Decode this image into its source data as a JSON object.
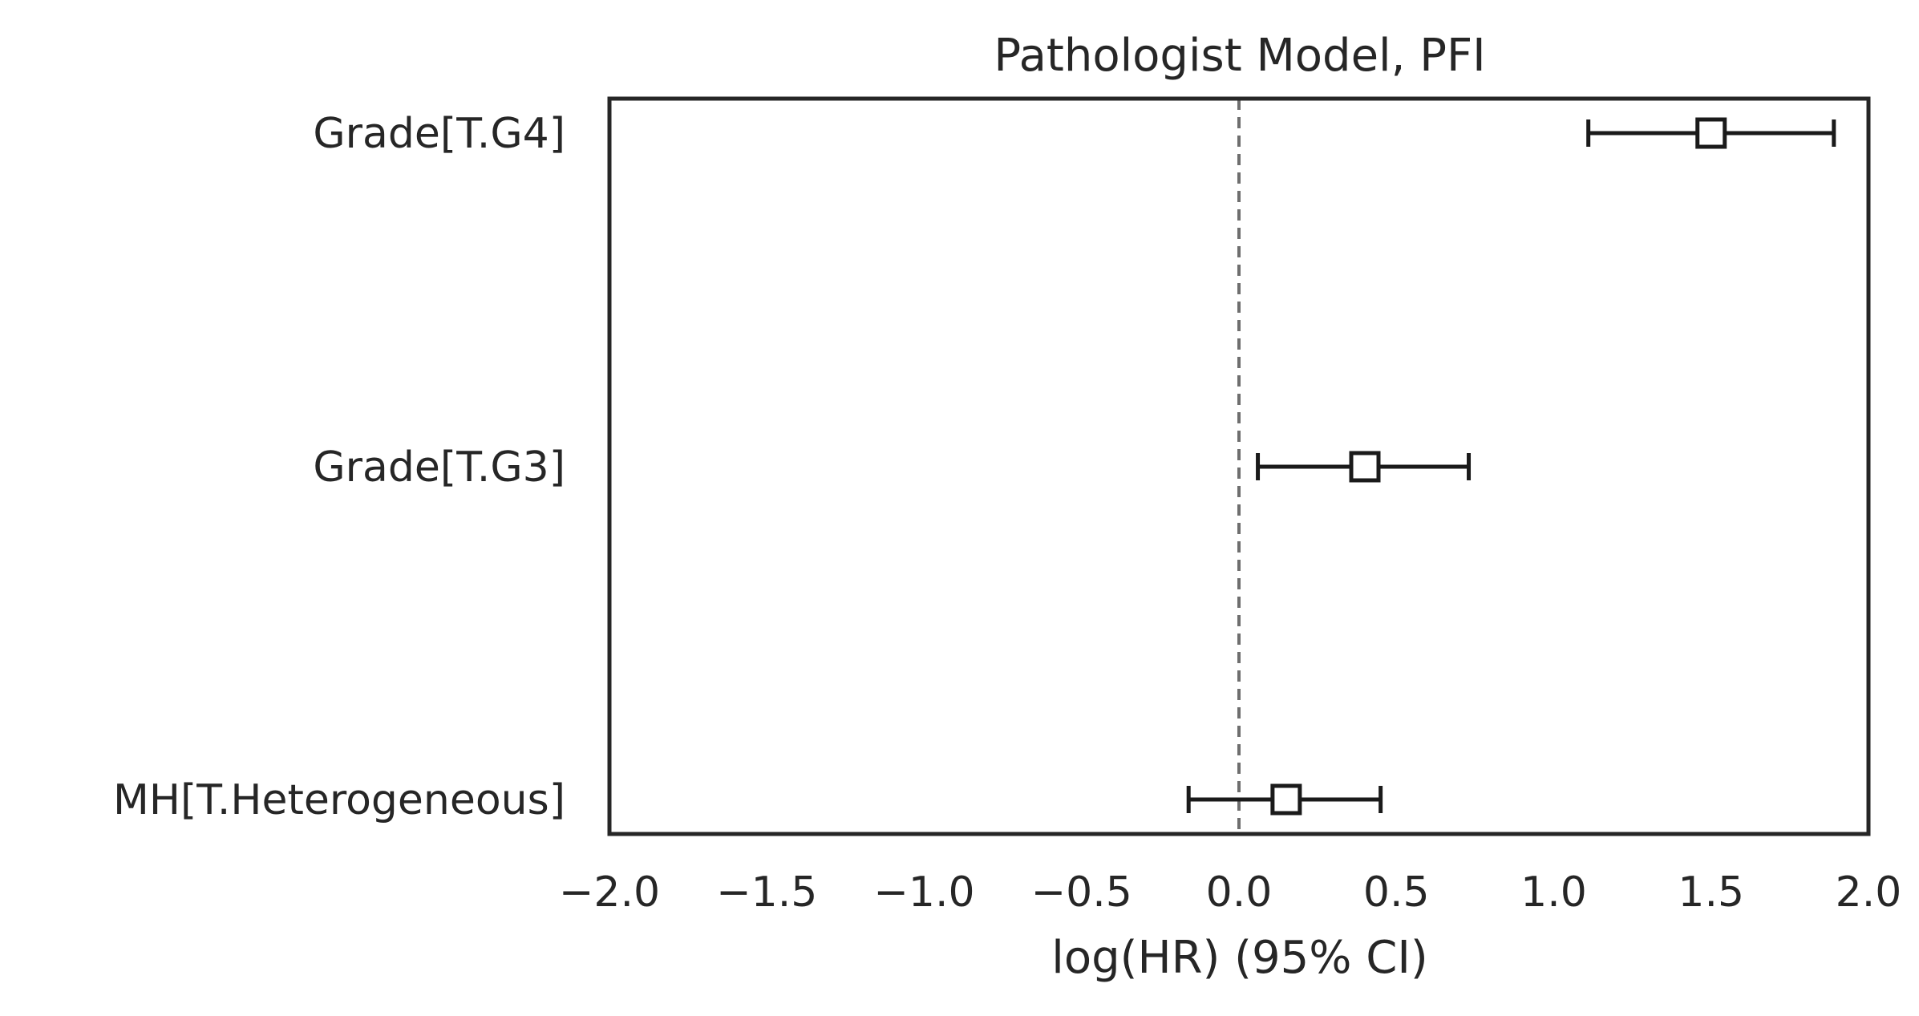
{
  "chart_data": {
    "type": "forest",
    "title": "Pathologist Model, PFI",
    "xlabel": "log(HR) (95% CI)",
    "ylabel": "",
    "xlim": [
      -2.0,
      2.0
    ],
    "x_ticks": [
      -2.0,
      -1.5,
      -1.0,
      -0.5,
      0.0,
      0.5,
      1.0,
      1.5,
      2.0
    ],
    "x_tick_labels": [
      "−2.0",
      "−1.5",
      "−1.0",
      "−0.5",
      "0.0",
      "0.5",
      "1.0",
      "1.5",
      "2.0"
    ],
    "reference_line": 0.0,
    "grid": false,
    "rows": [
      {
        "label": "Grade[T.G4]",
        "coef": 1.5,
        "lower": 1.11,
        "upper": 1.89
      },
      {
        "label": "Grade[T.G3]",
        "coef": 0.4,
        "lower": 0.06,
        "upper": 0.73
      },
      {
        "label": "MH[T.Heterogeneous]",
        "coef": 0.15,
        "lower": -0.16,
        "upper": 0.45
      }
    ]
  }
}
